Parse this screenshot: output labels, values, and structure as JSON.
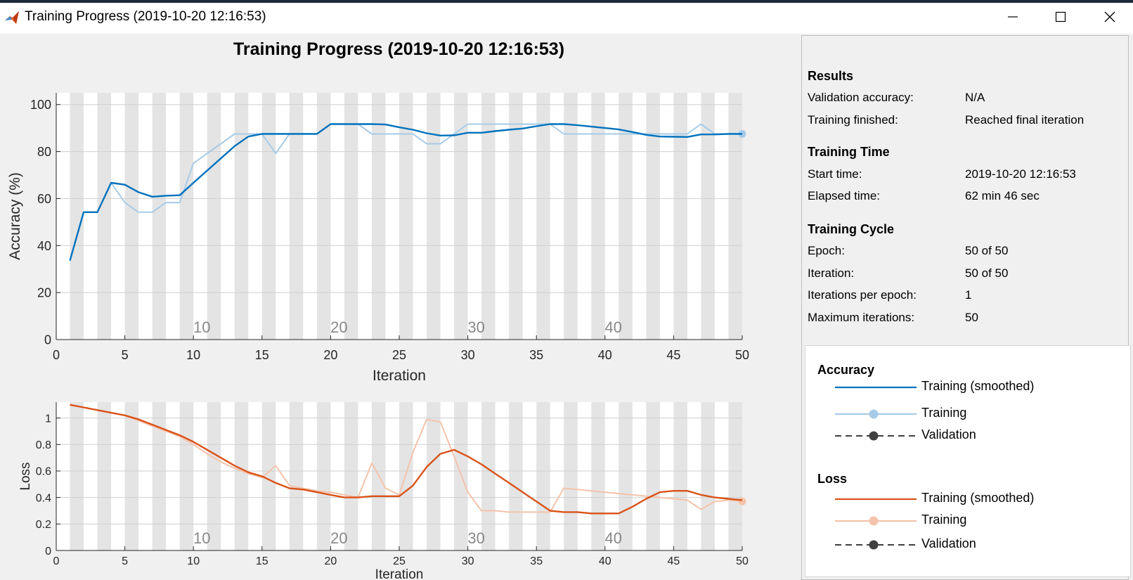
{
  "window": {
    "title": "Training Progress (2019-10-20 12:16:53)"
  },
  "colors": {
    "accuracy_smoothed": "#0072bd",
    "accuracy_training": "#a6cbe8",
    "loss_smoothed": "#d95319",
    "loss_training": "#f4c3ab",
    "validation": "#404040",
    "epoch_band": "#e4e4e4"
  },
  "results": {
    "heading": "Results",
    "rows": [
      {
        "label": "Validation accuracy:",
        "value": "N/A"
      },
      {
        "label": "Training finished:",
        "value": "Reached final iteration"
      }
    ]
  },
  "training_time": {
    "heading": "Training Time",
    "rows": [
      {
        "label": "Start time:",
        "value": "2019-10-20 12:16:53"
      },
      {
        "label": "Elapsed time:",
        "value": "62 min 46 sec"
      }
    ]
  },
  "training_cycle": {
    "heading": "Training Cycle",
    "rows": [
      {
        "label": "Epoch:",
        "value": "50 of 50"
      },
      {
        "label": "Iteration:",
        "value": "50 of 50"
      },
      {
        "label": "Iterations per epoch:",
        "value": "1"
      },
      {
        "label": "Maximum iterations:",
        "value": "50"
      }
    ]
  },
  "legend": {
    "accuracy": {
      "heading": "Accuracy",
      "items": [
        {
          "label": "Training (smoothed)",
          "icon": "solid-line",
          "color": "#0072bd"
        },
        {
          "label": "Training",
          "icon": "line-with-dot",
          "color": "#a6cbe8"
        },
        {
          "label": "Validation",
          "icon": "dashed-line-with-dot",
          "color": "#404040"
        }
      ]
    },
    "loss": {
      "heading": "Loss",
      "items": [
        {
          "label": "Training (smoothed)",
          "icon": "solid-line",
          "color": "#d95319"
        },
        {
          "label": "Training",
          "icon": "line-with-dot",
          "color": "#f4c3ab"
        },
        {
          "label": "Validation",
          "icon": "dashed-line-with-dot",
          "color": "#404040"
        }
      ]
    }
  },
  "chart_data": [
    {
      "type": "line",
      "title": "Training Progress (2019-10-20 12:16:53)",
      "xlabel": "Iteration",
      "ylabel": "Accuracy (%)",
      "xlim": [
        0,
        50
      ],
      "ylim": [
        0,
        105
      ],
      "xticks": [
        0,
        5,
        10,
        15,
        20,
        25,
        30,
        35,
        40,
        45,
        50
      ],
      "yticks": [
        0,
        20,
        40,
        60,
        80,
        100
      ],
      "epoch_labels": [
        10,
        20,
        30,
        40
      ],
      "epoch_bands": true,
      "grid": true,
      "x": [
        1,
        2,
        3,
        4,
        5,
        6,
        7,
        8,
        9,
        10,
        11,
        12,
        13,
        14,
        15,
        16,
        17,
        18,
        19,
        20,
        21,
        22,
        23,
        24,
        25,
        26,
        27,
        28,
        29,
        30,
        31,
        32,
        33,
        34,
        35,
        36,
        37,
        38,
        39,
        40,
        41,
        42,
        43,
        44,
        45,
        46,
        47,
        48,
        49,
        50
      ],
      "series": [
        {
          "name": "Training (smoothed)",
          "color": "#0072bd",
          "values": [
            33.6,
            54.2,
            54.2,
            66.7,
            65.9,
            62.7,
            60.8,
            61.2,
            61.4,
            66.7,
            71.9,
            77.1,
            82.3,
            86.4,
            87.5,
            87.5,
            87.5,
            87.5,
            87.5,
            91.7,
            91.7,
            91.7,
            91.7,
            91.5,
            90.3,
            89.3,
            87.8,
            86.8,
            86.9,
            88.0,
            88.0,
            88.7,
            89.3,
            89.8,
            90.8,
            91.7,
            91.7,
            91.2,
            90.6,
            90.0,
            89.4,
            88.3,
            87.1,
            86.4,
            86.3,
            86.2,
            87.3,
            87.3,
            87.5,
            87.5
          ]
        },
        {
          "name": "Training",
          "color": "#a6cbe8",
          "values": [
            33.6,
            54.2,
            54.2,
            66.7,
            58.3,
            54.2,
            54.2,
            58.3,
            58.3,
            75.0,
            79.2,
            83.3,
            87.5,
            87.5,
            87.5,
            79.2,
            87.5,
            87.5,
            87.5,
            91.7,
            91.7,
            91.7,
            87.5,
            87.5,
            87.5,
            87.5,
            83.3,
            83.3,
            87.5,
            91.7,
            91.7,
            91.7,
            91.7,
            91.7,
            91.7,
            91.7,
            87.5,
            87.5,
            87.5,
            87.5,
            87.5,
            87.5,
            87.5,
            87.5,
            87.5,
            87.5,
            91.7,
            87.5,
            87.5,
            87.5
          ]
        }
      ]
    },
    {
      "type": "line",
      "xlabel": "Iteration",
      "ylabel": "Loss",
      "xlim": [
        0,
        50
      ],
      "ylim": [
        0,
        1.12
      ],
      "xticks": [
        0,
        5,
        10,
        15,
        20,
        25,
        30,
        35,
        40,
        45,
        50
      ],
      "yticks": [
        0,
        0.2,
        0.4,
        0.6,
        0.8,
        1
      ],
      "epoch_labels": [
        10,
        20,
        30,
        40
      ],
      "epoch_bands": true,
      "grid": true,
      "x": [
        1,
        2,
        3,
        4,
        5,
        6,
        7,
        8,
        9,
        10,
        11,
        12,
        13,
        14,
        15,
        16,
        17,
        18,
        19,
        20,
        21,
        22,
        23,
        24,
        25,
        26,
        27,
        28,
        29,
        30,
        31,
        32,
        33,
        34,
        35,
        36,
        37,
        38,
        39,
        40,
        41,
        42,
        43,
        44,
        45,
        46,
        47,
        48,
        49,
        50
      ],
      "series": [
        {
          "name": "Training (smoothed)",
          "color": "#d95319",
          "values": [
            1.1,
            1.08,
            1.06,
            1.04,
            1.02,
            0.99,
            0.95,
            0.91,
            0.87,
            0.82,
            0.76,
            0.7,
            0.64,
            0.59,
            0.56,
            0.51,
            0.47,
            0.46,
            0.44,
            0.42,
            0.4,
            0.4,
            0.41,
            0.41,
            0.41,
            0.49,
            0.63,
            0.73,
            0.76,
            0.71,
            0.65,
            0.58,
            0.51,
            0.44,
            0.37,
            0.3,
            0.29,
            0.29,
            0.28,
            0.28,
            0.28,
            0.33,
            0.39,
            0.44,
            0.45,
            0.45,
            0.42,
            0.4,
            0.39,
            0.38
          ]
        },
        {
          "name": "Training",
          "color": "#f4c3ab",
          "values": [
            1.1,
            1.08,
            1.06,
            1.04,
            1.02,
            0.98,
            0.94,
            0.9,
            0.86,
            0.8,
            0.73,
            0.67,
            0.62,
            0.58,
            0.55,
            0.64,
            0.49,
            0.47,
            0.45,
            0.44,
            0.42,
            0.4,
            0.66,
            0.47,
            0.42,
            0.74,
            0.99,
            0.97,
            0.71,
            0.44,
            0.3,
            0.3,
            0.29,
            0.29,
            0.29,
            0.29,
            0.47,
            0.46,
            0.45,
            0.44,
            0.43,
            0.42,
            0.41,
            0.4,
            0.39,
            0.38,
            0.31,
            0.37,
            0.38,
            0.37
          ]
        }
      ]
    }
  ]
}
